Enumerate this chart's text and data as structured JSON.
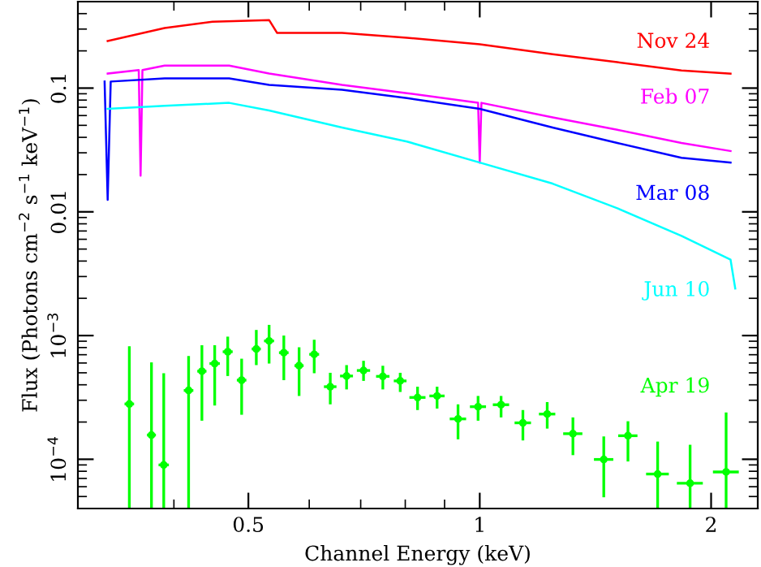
{
  "chart_data": {
    "type": "line",
    "xlabel": "Channel Energy (keV)",
    "ylabel": "Flux (Photons cm$^{−2}$ s$^{−1}$ keV$^{−1}$)",
    "log": "xy",
    "grid": false,
    "legend": "right",
    "line_style": "solid",
    "marker": "none",
    "xlim": [
      0.3,
      2.3
    ],
    "ylim": [
      4e-05,
      0.5
    ],
    "xticks": [
      0.5,
      1,
      2
    ],
    "yticks": [
      {
        "value": 0.0001,
        "label": "10$^{−4}$"
      },
      {
        "value": 0.001,
        "label": "10$^{−3}$"
      },
      0.01,
      0.1
    ],
    "series": [
      {
        "name": "Nov 24",
        "color": "#ff0000",
        "x": [
          0.328,
          0.389,
          0.449,
          0.532,
          0.545,
          0.662,
          0.804,
          1.0,
          1.244,
          1.51,
          1.83,
          2.12
        ],
        "values": [
          0.24,
          0.306,
          0.344,
          0.355,
          0.279,
          0.279,
          0.255,
          0.226,
          0.188,
          0.162,
          0.139,
          0.131
        ]
      },
      {
        "name": "Feb 07",
        "color": "#ff00ff",
        "x": [
          0.328,
          0.36,
          0.362,
          0.364,
          0.389,
          0.472,
          0.532,
          0.662,
          0.804,
          0.995,
          1.0,
          1.005,
          1.244,
          1.51,
          1.83,
          2.12
        ],
        "values": [
          0.131,
          0.14,
          0.0196,
          0.14,
          0.152,
          0.152,
          0.131,
          0.106,
          0.091,
          0.076,
          0.025,
          0.076,
          0.058,
          0.046,
          0.036,
          0.031
        ]
      },
      {
        "name": "Mar 08",
        "color": "#0000ff",
        "x": [
          0.325,
          0.328,
          0.331,
          0.389,
          0.472,
          0.532,
          0.662,
          0.804,
          1.0,
          1.244,
          1.51,
          1.83,
          2.12
        ],
        "values": [
          0.113,
          0.0125,
          0.113,
          0.12,
          0.12,
          0.106,
          0.097,
          0.083,
          0.068,
          0.048,
          0.036,
          0.0273,
          0.025
        ]
      },
      {
        "name": "Jun 10",
        "color": "#00ffff",
        "x": [
          0.328,
          0.389,
          0.472,
          0.532,
          0.662,
          0.804,
          1.0,
          1.244,
          1.51,
          1.83,
          2.12,
          2.15
        ],
        "values": [
          0.068,
          0.072,
          0.076,
          0.066,
          0.048,
          0.037,
          0.025,
          0.0169,
          0.0107,
          0.0064,
          0.0041,
          0.0024
        ]
      },
      {
        "name": "Apr 19",
        "color": "#00ff00",
        "type": "scatter",
        "x": [
          0.35,
          0.374,
          0.388,
          0.418,
          0.435,
          0.452,
          0.47,
          0.49,
          0.512,
          0.532,
          0.556,
          0.582,
          0.609,
          0.639,
          0.671,
          0.706,
          0.748,
          0.788,
          0.83,
          0.88,
          0.937,
          0.995,
          1.066,
          1.138,
          1.224,
          1.322,
          1.45,
          1.559,
          1.704,
          1.878,
          2.092
        ],
        "values": [
          0.00028,
          0.000157,
          9e-05,
          0.00036,
          0.000515,
          0.000594,
          0.00074,
          0.000436,
          0.000779,
          0.000905,
          0.000727,
          0.000571,
          0.000705,
          0.000386,
          0.000471,
          0.000522,
          0.000468,
          0.00043,
          0.000316,
          0.000325,
          0.000212,
          0.000266,
          0.000276,
          0.000197,
          0.000232,
          0.000161,
          9.97e-05,
          0.000155,
          7.6e-05,
          6.4e-05,
          7.9e-05
        ],
        "errors": [
          [
            4e-05,
            0.00082
          ],
          [
            4e-05,
            0.000607
          ],
          [
            4e-05,
            0.000496
          ],
          [
            4e-05,
            0.000684
          ],
          [
            0.000205,
            0.000835
          ],
          [
            0.000272,
            0.000835
          ],
          [
            0.000471,
            0.00098
          ],
          [
            0.000229,
            0.00065
          ],
          [
            0.000577,
            0.00111
          ],
          [
            0.000594,
            0.00122
          ],
          [
            0.000436,
            0.001
          ],
          [
            0.000325,
            0.000804
          ],
          [
            0.000496,
            0.000925
          ],
          [
            0.000278,
            0.0005
          ],
          [
            0.000367,
            0.000577
          ],
          [
            0.00043,
            0.000625
          ],
          [
            0.000367,
            0.00057
          ],
          [
            0.00035,
            0.0005
          ],
          [
            0.00025,
            0.000386
          ],
          [
            0.000257,
            0.000386
          ],
          [
            0.000145,
            0.000278
          ],
          [
            0.000205,
            0.000325
          ],
          [
            0.000218,
            0.000325
          ],
          [
            0.000142,
            0.00025
          ],
          [
            0.000177,
            0.00029
          ],
          [
            0.000108,
            0.000218
          ],
          [
            4.93e-05,
            0.000153
          ],
          [
            9.6e-05,
            0.000203
          ],
          [
            4e-05,
            0.000139
          ],
          [
            4e-05,
            0.000131
          ],
          [
            4e-05,
            0.000239
          ]
        ],
        "xerrors": [
          0.005,
          0.005,
          0.006,
          0.006,
          0.006,
          0.007,
          0.007,
          0.007,
          0.007,
          0.008,
          0.008,
          0.008,
          0.009,
          0.012,
          0.013,
          0.014,
          0.015,
          0.015,
          0.02,
          0.02,
          0.023,
          0.024,
          0.026,
          0.028,
          0.03,
          0.038,
          0.042,
          0.045,
          0.058,
          0.073,
          0.081
        ]
      }
    ]
  }
}
